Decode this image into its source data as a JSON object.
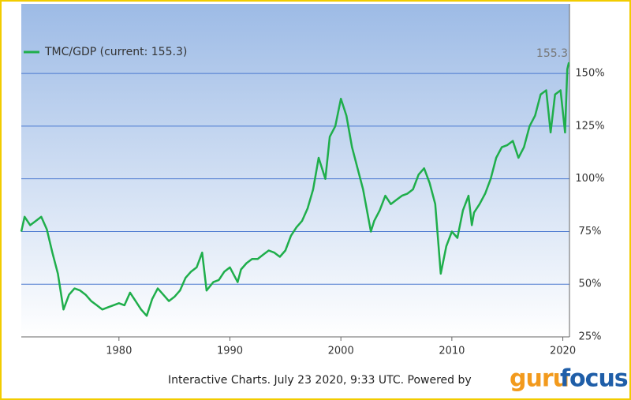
{
  "chart_data": {
    "type": "line",
    "legend": "top-left",
    "annotation": "155.3",
    "footer": "Interactive Charts. July 23 2020, 9:33 UTC. Powered by",
    "logo": [
      "guru",
      "focus"
    ],
    "grid": true,
    "xlim": [
      1971.2,
      2020.6
    ],
    "ylim": [
      25,
      183
    ],
    "xticks": [
      1980,
      1990,
      2000,
      2010,
      2020
    ],
    "yticks": [
      {
        "value": 25,
        "label": "25%"
      },
      {
        "value": 50,
        "label": "50%"
      },
      {
        "value": 75,
        "label": "75%"
      },
      {
        "value": 100,
        "label": "100%"
      },
      {
        "value": 125,
        "label": "125%"
      },
      {
        "value": 150,
        "label": "150%"
      }
    ],
    "x": [
      1971.2,
      1971.5,
      1972,
      1972.5,
      1973,
      1973.5,
      1974,
      1974.5,
      1975,
      1975.5,
      1976,
      1976.5,
      1977,
      1977.5,
      1978,
      1978.5,
      1979,
      1979.5,
      1980,
      1980.5,
      1981,
      1981.5,
      1982,
      1982.5,
      1983,
      1983.5,
      1984,
      1984.5,
      1985,
      1985.5,
      1986,
      1986.5,
      1987,
      1987.5,
      1987.9,
      1988.5,
      1989,
      1989.5,
      1990,
      1990.7,
      1991,
      1991.5,
      1992,
      1992.5,
      1993,
      1993.5,
      1994,
      1994.5,
      1995,
      1995.5,
      1996,
      1996.5,
      1997,
      1997.5,
      1998,
      1998.6,
      1999,
      1999.5,
      2000,
      2000.5,
      2001,
      2001.5,
      2002,
      2002.7,
      2003,
      2003.5,
      2004,
      2004.5,
      2005,
      2005.5,
      2006,
      2006.5,
      2007,
      2007.5,
      2008,
      2008.5,
      2009,
      2009.5,
      2010,
      2010.5,
      2011,
      2011.5,
      2011.8,
      2012,
      2012.5,
      2013,
      2013.5,
      2014,
      2014.5,
      2015,
      2015.5,
      2016,
      2016.5,
      2017,
      2017.5,
      2018,
      2018.5,
      2018.9,
      2019.3,
      2019.8,
      2020.2,
      2020.4,
      2020.55
    ],
    "series": [
      {
        "name": "TMC/GDP (current: 155.3)",
        "color": "#1fae4b",
        "values": [
          75,
          82,
          78,
          80,
          82,
          76,
          65,
          55,
          38,
          45,
          48,
          47,
          45,
          42,
          40,
          38,
          39,
          40,
          41,
          40,
          46,
          42,
          38,
          35,
          43,
          48,
          45,
          42,
          44,
          47,
          53,
          56,
          58,
          65,
          47,
          51,
          52,
          56,
          58,
          51,
          57,
          60,
          62,
          62,
          64,
          66,
          65,
          63,
          66,
          73,
          77,
          80,
          86,
          95,
          110,
          100,
          120,
          125,
          138,
          130,
          115,
          105,
          95,
          75,
          80,
          85,
          92,
          88,
          90,
          92,
          93,
          95,
          102,
          105,
          98,
          88,
          55,
          68,
          75,
          72,
          85,
          92,
          78,
          84,
          88,
          93,
          100,
          110,
          115,
          116,
          118,
          110,
          115,
          125,
          130,
          140,
          142,
          122,
          140,
          142,
          122,
          152,
          155.3
        ]
      }
    ]
  }
}
